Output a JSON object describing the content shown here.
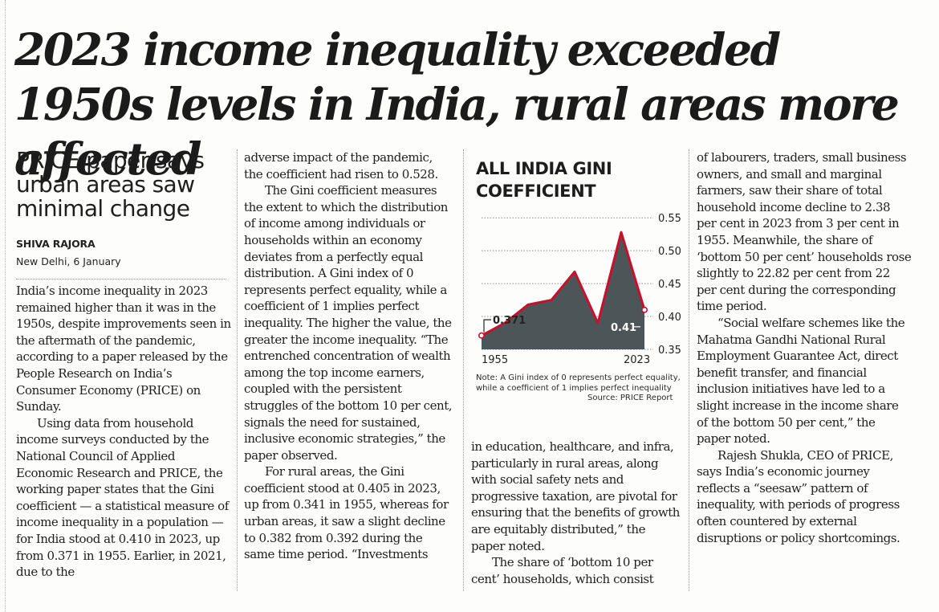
{
  "headline": "2023 income inequality exceeded 1950s levels in India, rural areas more affected",
  "subhead": "PRICE paper says urban areas saw minimal change",
  "byline": "SHIVA RAJORA",
  "dateline": "New Delhi, 6 January",
  "columns": {
    "col1": [
      "India’s income inequality in 2023 remained higher than it was in the 1950s, despite improvements seen in the aftermath of the pandemic, according to a paper released by the People Research on India’s Consumer Economy (PRICE) on Sunday.",
      "Using data from household income surveys conducted by the National Council of Applied Economic Research and PRICE, the working paper states that the Gini coefficient — a statistical measure of income inequality in a population — for India stood at 0.410 in 2023, up from 0.371 in 1955. Earlier, in 2021, due to the"
    ],
    "col2": [
      "adverse impact of the pandemic, the coefficient had risen to 0.528.",
      "The Gini coefficient measures the extent to which the distribution of income among individuals or households within an economy deviates from a perfectly equal distribution. A Gini index of 0 represents perfect equality, while a coefficient of 1 implies perfect inequality. The higher the value, the greater the income inequality. “The entrenched concentration of wealth among the top income earners, coupled with the persistent struggles of the bottom 10 per cent, signals the need for sustained, inclusive economic strategies,” the paper observed.",
      "For rural areas, the Gini coefficient stood at 0.405 in 2023, up from 0.341 in 1955, whereas for urban areas, it saw a slight decline to 0.382 from 0.392 during the same time period. “Investments"
    ],
    "col3": [
      "in education, healthcare, and infra, particularly in rural areas, along with social safety nets and progressive taxation, are pivotal for ensuring that the benefits of growth are equitably distributed,” the paper noted.",
      "The share of ‘bottom 10 per cent’ households, which consist"
    ],
    "col4": [
      "of labourers, traders, small business owners, and small and marginal farmers, saw their share of total household income decline to 2.38 per cent in 2023 from 3 per cent in 1955. Meanwhile, the share of ‘bottom 50 per cent’ households rose slightly to 22.82 per cent from 22 per cent during the corresponding time period.",
      "“Social welfare schemes like the Mahatma Gandhi National Rural Employment Guarantee Act, direct benefit transfer, and financial inclusion initiatives have led to a slight increase in the income share of the bottom 50 per cent,” the paper noted.",
      "Rajesh Shukla, CEO of PRICE, says India’s economic journey reflects a “seesaw” pattern of inequality, with periods of progress often countered by external disruptions or policy shortcomings."
    ]
  },
  "chart_data": {
    "type": "area",
    "title": "ALL INDIA GINI COEFFICIENT",
    "series": [
      {
        "name": "All India Gini coefficient",
        "values": [
          0.371,
          0.39,
          0.418,
          0.425,
          0.468,
          0.39,
          0.528,
          0.41
        ]
      }
    ],
    "x_labels": [
      "1955",
      "2023"
    ],
    "start_label": "0.371",
    "end_label": "0.41",
    "yticks": [
      0.35,
      0.4,
      0.45,
      0.5,
      0.55
    ],
    "ytick_labels": [
      "0.35",
      "0.40",
      "0.45",
      "0.50",
      "0.55"
    ],
    "ylim": [
      0.35,
      0.56
    ],
    "grid": true,
    "note": "Note: A Gini index of 0 represents perfect equality, while a coefficient of 1 implies perfect inequality",
    "source": "Source: PRICE Report",
    "colors": {
      "fill": "#4c5658",
      "line": "#c8102e",
      "grid": "#8a8a8a"
    }
  }
}
